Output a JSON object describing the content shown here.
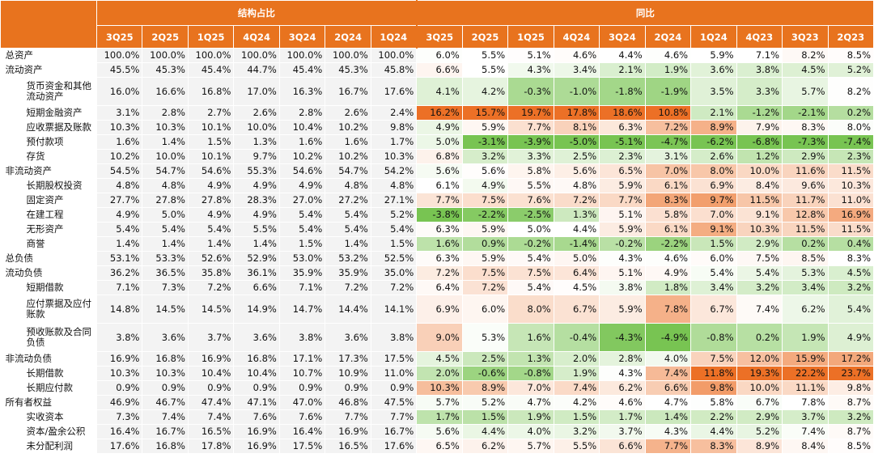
{
  "table": {
    "header": {
      "group1": "结构占比",
      "group2": "同比"
    },
    "columns": {
      "structure": [
        "3Q25",
        "2Q25",
        "1Q25",
        "4Q24",
        "3Q24",
        "2Q24",
        "1Q24"
      ],
      "yoy": [
        "3Q25",
        "2Q25",
        "1Q25",
        "4Q24",
        "3Q24",
        "2Q24",
        "1Q24",
        "4Q23",
        "3Q23",
        "2Q23"
      ]
    },
    "rows": [
      {
        "label": "总资产",
        "structure": [
          "100.0%",
          "100.0%",
          "100.0%",
          "100.0%",
          "100.0%",
          "100.0%",
          "100.0%"
        ],
        "yoy": [
          "6.0%",
          "5.5%",
          "5.1%",
          "4.6%",
          "4.4%",
          "4.6%",
          "5.9%",
          "7.1%",
          "8.2%",
          "8.5%"
        ]
      },
      {
        "label": "流动资产",
        "structure": [
          "45.5%",
          "45.3%",
          "45.4%",
          "44.7%",
          "45.4%",
          "45.3%",
          "45.8%"
        ],
        "yoy": [
          "6.6%",
          "5.5%",
          "4.3%",
          "3.4%",
          "2.1%",
          "1.9%",
          "3.6%",
          "3.8%",
          "4.5%",
          "5.2%"
        ]
      },
      {
        "label": "货币资金和其他流动资产",
        "structure": [
          "16.0%",
          "16.6%",
          "16.8%",
          "17.0%",
          "16.3%",
          "16.7%",
          "17.6%"
        ],
        "yoy": [
          "4.1%",
          "4.2%",
          "-0.3%",
          "-1.0%",
          "-1.8%",
          "-1.9%",
          "3.5%",
          "3.3%",
          "5.7%",
          "8.2%"
        ]
      },
      {
        "label": "短期金融资产",
        "structure": [
          "3.1%",
          "2.8%",
          "2.7%",
          "2.6%",
          "2.8%",
          "2.6%",
          "2.4%"
        ],
        "yoy": [
          "16.2%",
          "15.7%",
          "19.7%",
          "17.8%",
          "18.6%",
          "10.8%",
          "2.1%",
          "-1.2%",
          "-2.1%",
          "0.2%"
        ]
      },
      {
        "label": "应收票据及账款",
        "structure": [
          "10.3%",
          "10.3%",
          "10.1%",
          "10.0%",
          "10.4%",
          "10.2%",
          "9.8%"
        ],
        "yoy": [
          "4.9%",
          "5.9%",
          "7.7%",
          "8.1%",
          "6.3%",
          "7.2%",
          "8.9%",
          "7.9%",
          "8.3%",
          "8.0%"
        ]
      },
      {
        "label": "预付款项",
        "structure": [
          "1.6%",
          "1.4%",
          "1.5%",
          "1.3%",
          "1.6%",
          "1.6%",
          "1.7%"
        ],
        "yoy": [
          "5.0%",
          "-3.1%",
          "-3.9%",
          "-5.0%",
          "-5.1%",
          "-4.7%",
          "-6.2%",
          "-6.8%",
          "-7.3%",
          "-7.4%"
        ]
      },
      {
        "label": "存货",
        "structure": [
          "10.2%",
          "10.0%",
          "10.1%",
          "9.7%",
          "10.2%",
          "10.2%",
          "10.3%"
        ],
        "yoy": [
          "6.8%",
          "3.2%",
          "3.3%",
          "2.5%",
          "2.3%",
          "3.1%",
          "2.6%",
          "1.2%",
          "2.9%",
          "2.3%"
        ]
      },
      {
        "label": "非流动资产",
        "structure": [
          "54.5%",
          "54.7%",
          "54.6%",
          "55.3%",
          "54.6%",
          "54.7%",
          "54.2%"
        ],
        "yoy": [
          "5.6%",
          "5.6%",
          "5.8%",
          "5.6%",
          "6.5%",
          "7.0%",
          "8.0%",
          "10.0%",
          "11.6%",
          "11.5%"
        ]
      },
      {
        "label": "长期股权投资",
        "structure": [
          "4.8%",
          "4.8%",
          "4.9%",
          "4.9%",
          "4.9%",
          "4.8%",
          "4.8%"
        ],
        "yoy": [
          "6.1%",
          "4.9%",
          "5.5%",
          "4.8%",
          "5.9%",
          "6.1%",
          "6.9%",
          "8.4%",
          "9.6%",
          "10.3%"
        ]
      },
      {
        "label": "固定资产",
        "structure": [
          "27.7%",
          "27.8%",
          "27.8%",
          "28.3%",
          "27.0%",
          "27.2%",
          "27.1%"
        ],
        "yoy": [
          "7.7%",
          "7.5%",
          "7.6%",
          "7.2%",
          "7.7%",
          "8.3%",
          "9.7%",
          "11.5%",
          "11.7%",
          "11.0%"
        ]
      },
      {
        "label": "在建工程",
        "structure": [
          "4.9%",
          "5.0%",
          "4.9%",
          "4.9%",
          "5.4%",
          "5.4%",
          "5.2%"
        ],
        "yoy": [
          "-3.8%",
          "-2.2%",
          "-2.5%",
          "1.3%",
          "5.1%",
          "5.8%",
          "7.0%",
          "9.1%",
          "12.8%",
          "16.9%"
        ]
      },
      {
        "label": "无形资产",
        "structure": [
          "5.4%",
          "5.4%",
          "5.4%",
          "5.5%",
          "5.4%",
          "5.4%",
          "5.4%"
        ],
        "yoy": [
          "6.3%",
          "5.9%",
          "5.0%",
          "4.4%",
          "5.9%",
          "6.1%",
          "9.1%",
          "10.3%",
          "11.5%",
          "11.5%"
        ]
      },
      {
        "label": "商誉",
        "structure": [
          "1.4%",
          "1.4%",
          "1.4%",
          "1.4%",
          "1.5%",
          "1.4%",
          "1.5%"
        ],
        "yoy": [
          "1.6%",
          "0.9%",
          "-0.2%",
          "-1.4%",
          "-0.2%",
          "-2.2%",
          "1.5%",
          "2.9%",
          "0.2%",
          "0.4%"
        ]
      },
      {
        "label": "总负债",
        "structure": [
          "53.1%",
          "53.3%",
          "52.6%",
          "52.9%",
          "53.0%",
          "53.2%",
          "52.5%"
        ],
        "yoy": [
          "6.3%",
          "5.9%",
          "5.4%",
          "5.0%",
          "4.3%",
          "4.6%",
          "6.0%",
          "7.5%",
          "8.5%",
          "8.3%"
        ]
      },
      {
        "label": "流动负债",
        "structure": [
          "36.2%",
          "36.5%",
          "35.8%",
          "36.1%",
          "35.9%",
          "35.9%",
          "35.0%"
        ],
        "yoy": [
          "7.2%",
          "7.5%",
          "7.5%",
          "6.4%",
          "5.1%",
          "4.9%",
          "5.4%",
          "5.4%",
          "5.3%",
          "4.5%"
        ]
      },
      {
        "label": "短期借款",
        "structure": [
          "7.1%",
          "7.3%",
          "7.2%",
          "6.6%",
          "7.1%",
          "7.2%",
          "7.2%"
        ],
        "yoy": [
          "6.4%",
          "7.2%",
          "5.4%",
          "4.5%",
          "3.8%",
          "1.8%",
          "3.4%",
          "3.2%",
          "3.4%",
          "3.2%"
        ]
      },
      {
        "label": "应付票据及应付账款",
        "structure": [
          "14.8%",
          "14.5%",
          "14.5%",
          "14.9%",
          "14.7%",
          "14.4%",
          "14.1%"
        ],
        "yoy": [
          "6.9%",
          "6.0%",
          "8.0%",
          "6.7%",
          "5.9%",
          "7.8%",
          "6.7%",
          "7.4%",
          "6.2%",
          "5.4%"
        ]
      },
      {
        "label": "预收账款及合同负债",
        "structure": [
          "3.8%",
          "3.6%",
          "3.7%",
          "3.6%",
          "3.8%",
          "3.6%",
          "3.8%"
        ],
        "yoy": [
          "9.0%",
          "5.3%",
          "1.6%",
          "-0.4%",
          "-4.3%",
          "-4.9%",
          "-0.8%",
          "0.2%",
          "1.9%",
          "4.9%"
        ]
      },
      {
        "label": "非流动负债",
        "structure": [
          "16.9%",
          "16.8%",
          "16.9%",
          "16.8%",
          "17.1%",
          "17.3%",
          "17.5%"
        ],
        "yoy": [
          "4.5%",
          "2.5%",
          "1.3%",
          "2.0%",
          "2.8%",
          "4.0%",
          "7.5%",
          "12.0%",
          "15.9%",
          "17.2%"
        ]
      },
      {
        "label": "长期借款",
        "structure": [
          "10.3%",
          "10.3%",
          "10.4%",
          "10.4%",
          "10.7%",
          "10.9%",
          "11.0%"
        ],
        "yoy": [
          "2.0%",
          "-0.6%",
          "-0.8%",
          "1.9%",
          "4.3%",
          "7.4%",
          "11.8%",
          "19.3%",
          "22.2%",
          "23.7%"
        ]
      },
      {
        "label": "长期应付款",
        "structure": [
          "0.9%",
          "0.9%",
          "0.9%",
          "0.9%",
          "0.9%",
          "0.9%",
          "0.9%"
        ],
        "yoy": [
          "10.3%",
          "8.9%",
          "7.0%",
          "7.4%",
          "6.2%",
          "6.6%",
          "9.8%",
          "10.0%",
          "11.1%",
          "9.8%"
        ]
      },
      {
        "label": "所有者权益",
        "structure": [
          "46.9%",
          "46.7%",
          "47.4%",
          "47.1%",
          "47.0%",
          "46.8%",
          "47.5%"
        ],
        "yoy": [
          "5.7%",
          "5.2%",
          "4.7%",
          "4.2%",
          "4.6%",
          "4.7%",
          "5.8%",
          "6.7%",
          "7.8%",
          "8.7%"
        ]
      },
      {
        "label": "实收资本",
        "structure": [
          "7.3%",
          "7.4%",
          "7.4%",
          "7.6%",
          "7.6%",
          "7.7%",
          "7.7%"
        ],
        "yoy": [
          "1.7%",
          "1.5%",
          "1.9%",
          "1.5%",
          "1.7%",
          "1.4%",
          "2.2%",
          "2.9%",
          "3.7%",
          "3.2%"
        ]
      },
      {
        "label": "资本/盈余公积",
        "structure": [
          "16.4%",
          "16.7%",
          "16.5%",
          "16.9%",
          "16.4%",
          "16.9%",
          "16.7%"
        ],
        "yoy": [
          "5.6%",
          "4.4%",
          "4.0%",
          "3.2%",
          "3.7%",
          "4.3%",
          "4.4%",
          "5.2%",
          "7.4%",
          "8.7%"
        ]
      },
      {
        "label": "未分配利润",
        "structure": [
          "17.6%",
          "16.8%",
          "17.8%",
          "16.9%",
          "17.5%",
          "16.5%",
          "17.6%"
        ],
        "yoy": [
          "6.5%",
          "6.2%",
          "5.7%",
          "5.5%",
          "6.6%",
          "7.7%",
          "8.3%",
          "8.9%",
          "8.4%",
          "8.5%"
        ]
      }
    ]
  }
}
